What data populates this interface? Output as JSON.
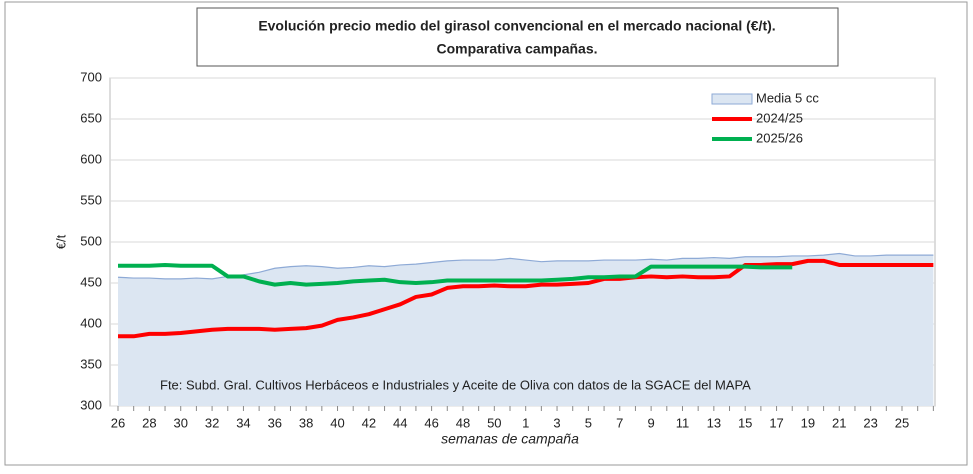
{
  "chart_data": {
    "type": "line",
    "title": [
      "Evolución precio medio del girasol convencional en el mercado nacional (€/t).",
      "Comparativa campañas."
    ],
    "xlabel": "semanas de campaña",
    "ylabel": "€/t",
    "annotation": "Fte: Subd. Gral. Cultivos Herbáceos e Industriales y Aceite de Oliva con datos de la SGACE del MAPA",
    "categories": [
      "26",
      null,
      "28",
      null,
      "30",
      null,
      "32",
      null,
      "34",
      null,
      "36",
      null,
      "38",
      null,
      "40",
      null,
      "42",
      null,
      "44",
      null,
      "46",
      null,
      "48",
      null,
      "50",
      null,
      "1",
      null,
      "3",
      null,
      "5",
      null,
      "7",
      null,
      "9",
      null,
      "11",
      null,
      "13",
      null,
      "15",
      null,
      "17",
      null,
      "19",
      null,
      "21",
      null,
      "23",
      null,
      "25",
      null,
      null
    ],
    "ylim": [
      300,
      700
    ],
    "yticks": [
      300,
      350,
      400,
      450,
      500,
      550,
      600,
      650,
      700
    ],
    "grid": true,
    "legend": "upper right",
    "series": [
      {
        "name": "Media 5 cc",
        "kind": "area",
        "color": "#dce6f2",
        "edge": "#8eaad6",
        "values": [
          457,
          456,
          456,
          455,
          455,
          456,
          455,
          458,
          460,
          463,
          468,
          470,
          471,
          470,
          468,
          469,
          471,
          470,
          472,
          473,
          475,
          477,
          478,
          478,
          478,
          480,
          478,
          476,
          477,
          477,
          477,
          478,
          478,
          478,
          479,
          478,
          480,
          480,
          481,
          480,
          482,
          482,
          482,
          483,
          483,
          484,
          486,
          483,
          483,
          484,
          484,
          484,
          484
        ]
      },
      {
        "name": "2024/25",
        "kind": "line",
        "color": "#ff0000",
        "values": [
          385,
          385,
          388,
          388,
          389,
          391,
          393,
          394,
          394,
          394,
          393,
          394,
          395,
          398,
          405,
          408,
          412,
          418,
          424,
          433,
          436,
          444,
          446,
          446,
          447,
          446,
          446,
          448,
          448,
          449,
          450,
          455,
          455,
          457,
          458,
          457,
          458,
          457,
          457,
          458,
          472,
          472,
          473,
          473,
          477,
          477,
          472,
          472,
          472,
          472,
          472,
          472,
          472
        ]
      },
      {
        "name": "2025/26",
        "kind": "line",
        "color": "#00b050",
        "values": [
          471,
          471,
          471,
          472,
          471,
          471,
          471,
          458,
          458,
          452,
          448,
          450,
          448,
          449,
          450,
          452,
          453,
          454,
          451,
          450,
          451,
          453,
          453,
          453,
          453,
          453,
          453,
          453,
          454,
          455,
          457,
          457,
          458,
          458,
          470,
          470,
          470,
          470,
          470,
          470,
          470,
          469,
          469,
          469,
          null,
          null,
          null,
          null,
          null,
          null,
          null,
          null,
          null
        ]
      }
    ]
  }
}
